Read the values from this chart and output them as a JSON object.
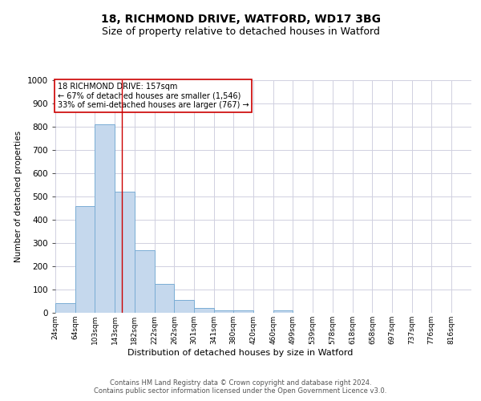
{
  "title1": "18, RICHMOND DRIVE, WATFORD, WD17 3BG",
  "title2": "Size of property relative to detached houses in Watford",
  "xlabel": "Distribution of detached houses by size in Watford",
  "ylabel": "Number of detached properties",
  "footer1": "Contains HM Land Registry data © Crown copyright and database right 2024.",
  "footer2": "Contains public sector information licensed under the Open Government Licence v3.0.",
  "annotation_title": "18 RICHMOND DRIVE: 157sqm",
  "annotation_line1": "← 67% of detached houses are smaller (1,546)",
  "annotation_line2": "33% of semi-detached houses are larger (767) →",
  "bar_color": "#c5d8ed",
  "bar_edge_color": "#7aadd4",
  "redline_x": 157,
  "categories": [
    "24sqm",
    "64sqm",
    "103sqm",
    "143sqm",
    "182sqm",
    "222sqm",
    "262sqm",
    "301sqm",
    "341sqm",
    "380sqm",
    "420sqm",
    "460sqm",
    "499sqm",
    "539sqm",
    "578sqm",
    "618sqm",
    "658sqm",
    "697sqm",
    "737sqm",
    "776sqm",
    "816sqm"
  ],
  "bin_edges": [
    24,
    64,
    103,
    143,
    182,
    222,
    262,
    301,
    341,
    380,
    420,
    460,
    499,
    539,
    578,
    618,
    658,
    697,
    737,
    776,
    816,
    856
  ],
  "values": [
    40,
    460,
    810,
    520,
    270,
    125,
    55,
    20,
    10,
    10,
    0,
    10,
    0,
    0,
    0,
    0,
    0,
    0,
    0,
    0,
    0
  ],
  "ylim": [
    0,
    1000
  ],
  "yticks": [
    0,
    100,
    200,
    300,
    400,
    500,
    600,
    700,
    800,
    900,
    1000
  ],
  "grid_color": "#d0d0e0",
  "background_color": "#ffffff",
  "title1_fontsize": 10,
  "title2_fontsize": 9,
  "annotation_box_color": "#ffffff",
  "annotation_box_edgecolor": "#cc0000",
  "redline_color": "#cc0000",
  "footer_color": "#555555"
}
